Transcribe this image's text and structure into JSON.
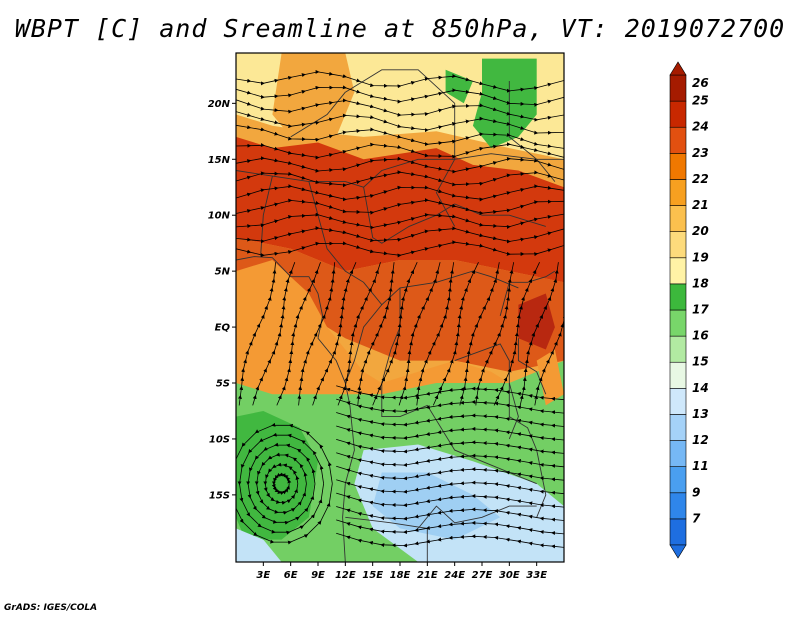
{
  "title": "WBPT [C] and Sreamline at 850hPa, VT: 2019072700",
  "credit": "GrADS: IGES/COLA",
  "map": {
    "variable": "Wet-bulb potential temperature",
    "units": "C",
    "level": "850hPa",
    "valid_time": "2019072700",
    "overlay": "Streamline",
    "lat_range": [
      -21,
      24.5
    ],
    "lon_range": [
      0,
      36
    ],
    "lat_ticks": [
      {
        "value": 20,
        "label": "20N"
      },
      {
        "value": 15,
        "label": "15N"
      },
      {
        "value": 10,
        "label": "10N"
      },
      {
        "value": 5,
        "label": "5N"
      },
      {
        "value": 0,
        "label": "EQ"
      },
      {
        "value": -5,
        "label": "5S"
      },
      {
        "value": -10,
        "label": "10S"
      },
      {
        "value": -15,
        "label": "15S"
      }
    ],
    "lon_ticks": [
      {
        "value": 3,
        "label": "3E"
      },
      {
        "value": 6,
        "label": "6E"
      },
      {
        "value": 9,
        "label": "9E"
      },
      {
        "value": 12,
        "label": "12E"
      },
      {
        "value": 15,
        "label": "15E"
      },
      {
        "value": 18,
        "label": "18E"
      },
      {
        "value": 21,
        "label": "21E"
      },
      {
        "value": 24,
        "label": "24E"
      },
      {
        "value": 27,
        "label": "27E"
      },
      {
        "value": 30,
        "label": "30E"
      },
      {
        "value": 33,
        "label": "33E"
      }
    ],
    "cyclonic_circulation_center": {
      "lon": 5,
      "lat": -14
    }
  },
  "colorbar": {
    "levels": [
      {
        "label": "7",
        "color": "#1e6ee0"
      },
      {
        "label": "9",
        "color": "#2f86ea"
      },
      {
        "label": "11",
        "color": "#4a9ff0"
      },
      {
        "label": "12",
        "color": "#76b8f5"
      },
      {
        "label": "13",
        "color": "#a5d2f8"
      },
      {
        "label": "14",
        "color": "#cfe8fb"
      },
      {
        "label": "15",
        "color": "#e8f8e4"
      },
      {
        "label": "16",
        "color": "#b2eaa2"
      },
      {
        "label": "17",
        "color": "#78d66a"
      },
      {
        "label": "18",
        "color": "#3cb83c"
      },
      {
        "label": "19",
        "color": "#fff3a6"
      },
      {
        "label": "20",
        "color": "#fddb7c"
      },
      {
        "label": "21",
        "color": "#fbc04e"
      },
      {
        "label": "22",
        "color": "#f7a020"
      },
      {
        "label": "23",
        "color": "#f07800"
      },
      {
        "label": "24",
        "color": "#e25010"
      },
      {
        "label": "25",
        "color": "#c82800"
      },
      {
        "label": "26",
        "color": "#a51b00"
      }
    ],
    "over_color": "#a51b00",
    "under_color": "#1e6ee0"
  },
  "field_colors": {
    "band_north_yellow": "#fce896",
    "band_north_orange": "#f2a73e",
    "band_sahel_red": "#d3390d",
    "band_central_orange": "#dd5918",
    "band_eq_orange": "#f49a34",
    "band_south_green": "#73cf64",
    "patch_green": "#41b840",
    "patch_light_blue": "#c3e3f7",
    "patch_blue": "#9fcff3",
    "patch_dark_red": "#b82810"
  }
}
